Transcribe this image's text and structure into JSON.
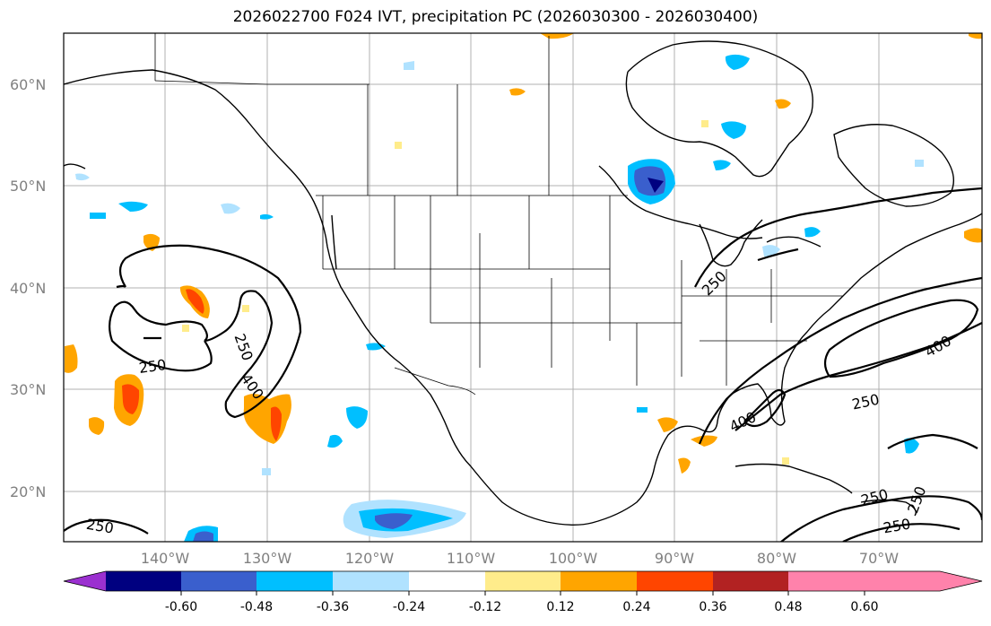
{
  "title": "2026022700 F024 IVT, precipitation PC (2026030300 - 2026030400)",
  "map": {
    "lat_labels": [
      "60°N",
      "50°N",
      "40°N",
      "30°N",
      "20°N"
    ],
    "lon_labels": [
      "140°W",
      "130°W",
      "120°W",
      "110°W",
      "100°W",
      "90°W",
      "80°W",
      "70°W"
    ],
    "contour_labels": [
      "250",
      "250",
      "400",
      "250",
      "400",
      "250",
      "400",
      "250",
      "250",
      "250",
      "250"
    ]
  },
  "colorbar": {
    "colors": [
      "#9b30d0",
      "#000080",
      "#3a5fcd",
      "#00bfff",
      "#b0e2ff",
      "#ffffff",
      "#ffec8b",
      "#ffa500",
      "#ff4500",
      "#b22222",
      "#ff82ab"
    ],
    "tick_labels": [
      "-0.60",
      "-0.48",
      "-0.36",
      "-0.24",
      "-0.12",
      "0.12",
      "0.24",
      "0.36",
      "0.48",
      "0.60"
    ]
  }
}
